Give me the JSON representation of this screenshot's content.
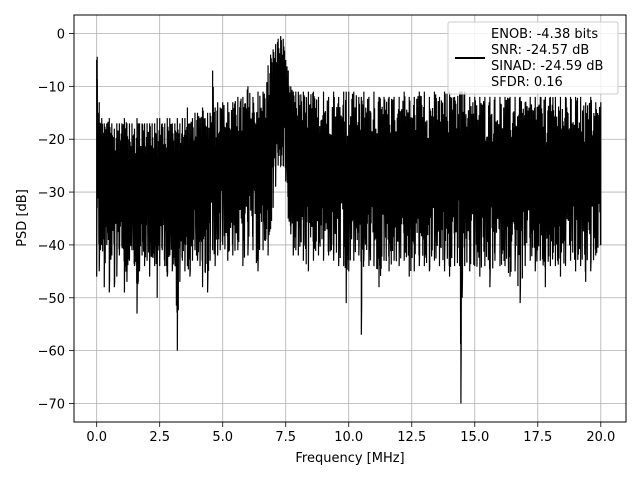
{
  "chart_data": {
    "type": "line",
    "title": "",
    "xlabel": "Frequency [MHz]",
    "ylabel": "PSD [dB]",
    "xlim": [
      -0.9,
      21.0
    ],
    "ylim": [
      -73.5,
      3.5
    ],
    "x_ticks": [
      0.0,
      2.5,
      5.0,
      7.5,
      10.0,
      12.5,
      15.0,
      17.5,
      20.0
    ],
    "x_tick_labels": [
      "0.0",
      "2.5",
      "5.0",
      "7.5",
      "10.0",
      "12.5",
      "15.0",
      "17.5",
      "20.0"
    ],
    "y_ticks": [
      0,
      -10,
      -20,
      -30,
      -40,
      -50,
      -60,
      -70
    ],
    "y_tick_labels": [
      "0",
      "−10",
      "−20",
      "−30",
      "−40",
      "−50",
      "−60",
      "−70"
    ],
    "grid": true,
    "legend_position": "top-right",
    "line_color": "#000000",
    "series": [
      {
        "name": "ENOB: -4.38 bits\nSNR: -24.57 dB\nSINAD: -24.59 dB\nSFDR: 0.16",
        "x": [
          0.0,
          0.02,
          0.05,
          0.1,
          0.15,
          0.2,
          0.3,
          0.4,
          0.5,
          0.6,
          0.7,
          0.8,
          0.9,
          1.0,
          1.1,
          1.2,
          1.3,
          1.4,
          1.5,
          1.6,
          1.65,
          1.7,
          1.8,
          1.9,
          2.0,
          2.1,
          2.2,
          2.3,
          2.4,
          2.5,
          2.6,
          2.7,
          2.8,
          2.9,
          3.0,
          3.1,
          3.2,
          3.3,
          3.4,
          3.5,
          3.6,
          3.7,
          3.8,
          3.9,
          4.0,
          4.1,
          4.2,
          4.3,
          4.4,
          4.5,
          4.6,
          4.7,
          4.8,
          4.9,
          5.0,
          5.2,
          5.4,
          5.6,
          5.8,
          6.0,
          6.2,
          6.4,
          6.6,
          6.8,
          6.9,
          7.0,
          7.1,
          7.2,
          7.3,
          7.4,
          7.5,
          7.6,
          7.7,
          7.8,
          7.9,
          8.0,
          8.2,
          8.4,
          8.6,
          8.8,
          9.0,
          9.2,
          9.4,
          9.6,
          9.8,
          9.9,
          10.0,
          10.2,
          10.4,
          10.5,
          10.6,
          10.8,
          11.0,
          11.2,
          11.4,
          11.6,
          11.8,
          12.0,
          12.2,
          12.4,
          12.6,
          12.8,
          13.0,
          13.2,
          13.4,
          13.6,
          13.8,
          14.0,
          14.2,
          14.4,
          14.45,
          14.5,
          14.6,
          14.8,
          15.0,
          15.2,
          15.4,
          15.6,
          15.8,
          16.0,
          16.2,
          16.4,
          16.6,
          16.8,
          17.0,
          17.2,
          17.4,
          17.6,
          17.8,
          18.0,
          18.2,
          18.4,
          18.6,
          18.8,
          19.0,
          19.2,
          19.4,
          19.6,
          19.8,
          20.0
        ],
        "y_upper": [
          -5,
          -4.4,
          -15,
          -13,
          -17,
          -16,
          -17,
          -17,
          -16,
          -17,
          -18,
          -17,
          -17,
          -17,
          -16,
          -17,
          -17,
          -17,
          -18,
          -16,
          -17,
          -17,
          -17,
          -17,
          -17,
          -17,
          -17,
          -17,
          -16,
          -16,
          -17,
          -17,
          -16,
          -16,
          -17,
          -17,
          -16,
          -17,
          -16,
          -16,
          -14,
          -17,
          -16,
          -15,
          -15,
          -16,
          -14,
          -16,
          -15,
          -15,
          -7,
          -14,
          -13,
          -14,
          -13,
          -13,
          -13,
          -12,
          -12,
          -10,
          -12,
          -11,
          -11,
          -6,
          -4,
          -3,
          -2,
          -1,
          -0.5,
          -1,
          -5,
          -7,
          -10,
          -11,
          -11,
          -11,
          -11,
          -11,
          -11,
          -12,
          -11,
          -12,
          -11,
          -12,
          -11,
          -11,
          -11,
          -11,
          -12,
          -12,
          -11,
          -12,
          -11,
          -12,
          -12,
          -12,
          -12,
          -12,
          -11,
          -12,
          -12,
          -11,
          -11,
          -12,
          -11,
          -12,
          -11,
          -11,
          -12,
          -11,
          -11,
          -11,
          -11,
          -12,
          -12,
          -12,
          -12,
          -12,
          -12,
          -12,
          -12,
          -12,
          -12,
          -12,
          -13,
          -12,
          -12,
          -12,
          -12,
          -12,
          -12,
          -12,
          -12,
          -12,
          -12,
          -12,
          -13,
          -12,
          -13,
          -13
        ],
        "y_lower": [
          -46,
          -33,
          -30,
          -45,
          -41,
          -40,
          -48,
          -40,
          -49,
          -42,
          -48,
          -46,
          -42,
          -40,
          -49,
          -47,
          -43,
          -41,
          -44,
          -53,
          -47,
          -45,
          -42,
          -44,
          -43,
          -46,
          -42,
          -44,
          -50,
          -44,
          -41,
          -44,
          -46,
          -42,
          -45,
          -43,
          -60,
          -47,
          -43,
          -45,
          -44,
          -46,
          -43,
          -41,
          -43,
          -44,
          -48,
          -45,
          -49,
          -43,
          -41,
          -44,
          -42,
          -41,
          -40,
          -43,
          -42,
          -41,
          -44,
          -42,
          -41,
          -45,
          -41,
          -42,
          -37,
          -33,
          -29,
          -25,
          -25,
          -25,
          -28,
          -35,
          -38,
          -42,
          -41,
          -42,
          -43,
          -45,
          -43,
          -42,
          -43,
          -42,
          -43,
          -44,
          -44,
          -51,
          -45,
          -43,
          -42,
          -57,
          -43,
          -44,
          -44,
          -48,
          -43,
          -45,
          -43,
          -44,
          -43,
          -46,
          -45,
          -44,
          -44,
          -45,
          -43,
          -44,
          -45,
          -46,
          -44,
          -44,
          -70,
          -50,
          -44,
          -45,
          -44,
          -46,
          -44,
          -48,
          -43,
          -44,
          -44,
          -46,
          -45,
          -51,
          -44,
          -43,
          -45,
          -43,
          -48,
          -44,
          -44,
          -46,
          -44,
          -43,
          -45,
          -44,
          -47,
          -45,
          -42,
          -40
        ]
      }
    ]
  },
  "legend": {
    "lines": [
      "ENOB: -4.38 bits",
      "SNR: -24.57 dB",
      "SINAD: -24.59 dB",
      "SFDR: 0.16"
    ]
  }
}
